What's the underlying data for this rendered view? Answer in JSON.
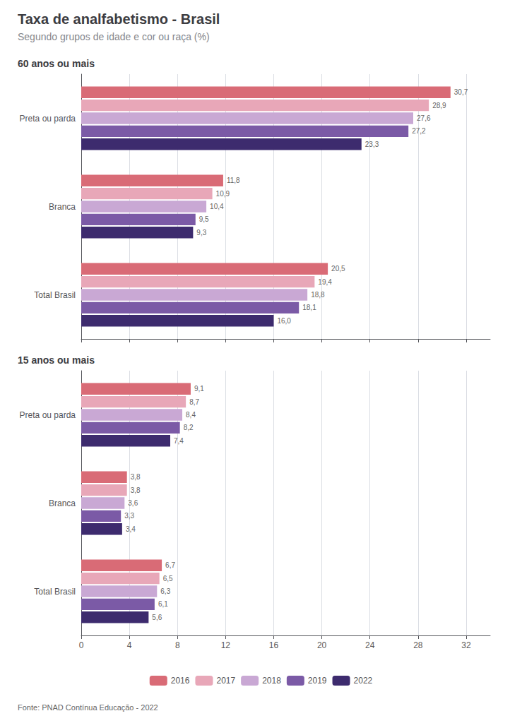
{
  "title": "Taxa de analfabetismo - Brasil",
  "subtitle": "Segundo grupos de idade e cor ou raça (%)",
  "annotations": [
    "Fonte: PNAD Contínua Educação - 2022"
  ],
  "chart_data": [
    {
      "type": "bar",
      "orientation": "horizontal",
      "title": "60 anos ou mais",
      "categories": [
        "Preta ou parda",
        "Branca",
        "Total Brasil"
      ],
      "series": [
        {
          "name": "2016",
          "color": "#d96b76",
          "values": [
            30.7,
            11.8,
            20.5
          ],
          "value_labels": [
            "30,7",
            "11,8",
            "20,5"
          ]
        },
        {
          "name": "2017",
          "color": "#e8a7b8",
          "values": [
            28.9,
            10.9,
            19.4
          ],
          "value_labels": [
            "28,9",
            "10,9",
            "19,4"
          ]
        },
        {
          "name": "2018",
          "color": "#c9a8d4",
          "values": [
            27.6,
            10.4,
            18.8
          ],
          "value_labels": [
            "27,6",
            "10,4",
            "18,8"
          ]
        },
        {
          "name": "2019",
          "color": "#7b5aa6",
          "values": [
            27.2,
            9.5,
            18.1
          ],
          "value_labels": [
            "27,2",
            "9,5",
            "18,1"
          ]
        },
        {
          "name": "2022",
          "color": "#3d2b6e",
          "values": [
            23.3,
            9.3,
            16.0
          ],
          "value_labels": [
            "23,3",
            "9,3",
            "16,0"
          ]
        }
      ],
      "xlim": [
        0,
        34
      ],
      "xticks": [
        0,
        4,
        8,
        12,
        16,
        20,
        24,
        28,
        32
      ],
      "grid": true,
      "data_labels": true,
      "tick_labels": "y"
    },
    {
      "type": "bar",
      "orientation": "horizontal",
      "title": "15 anos ou mais",
      "categories": [
        "Preta ou parda",
        "Branca",
        "Total Brasil"
      ],
      "series": [
        {
          "name": "2016",
          "color": "#d96b76",
          "values": [
            9.1,
            3.8,
            6.7
          ],
          "value_labels": [
            "9,1",
            "3,8",
            "6,7"
          ]
        },
        {
          "name": "2017",
          "color": "#e8a7b8",
          "values": [
            8.7,
            3.8,
            6.5
          ],
          "value_labels": [
            "8,7",
            "3,8",
            "6,5"
          ]
        },
        {
          "name": "2018",
          "color": "#c9a8d4",
          "values": [
            8.4,
            3.6,
            6.3
          ],
          "value_labels": [
            "8,4",
            "3,6",
            "6,3"
          ]
        },
        {
          "name": "2019",
          "color": "#7b5aa6",
          "values": [
            8.2,
            3.3,
            6.1
          ],
          "value_labels": [
            "8,2",
            "3,3",
            "6,1"
          ]
        },
        {
          "name": "2022",
          "color": "#3d2b6e",
          "values": [
            7.4,
            3.4,
            5.6
          ],
          "value_labels": [
            "7,4",
            "3,4",
            "5,6"
          ]
        }
      ],
      "xlim": [
        0,
        34
      ],
      "xticks": [
        0,
        4,
        8,
        12,
        16,
        20,
        24,
        28,
        32
      ],
      "grid": true,
      "data_labels": true,
      "legend": "bottom"
    }
  ]
}
